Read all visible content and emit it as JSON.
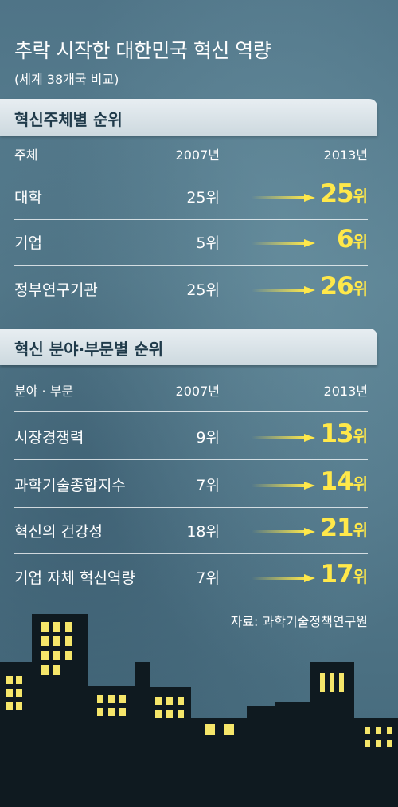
{
  "title": "추락 시작한 대한민국 혁신 역량",
  "subtitle": "(세계 38개국 비교)",
  "section1": {
    "heading": "혁신주체별 순위",
    "columns": [
      "주체",
      "2007년",
      "2013년"
    ],
    "rows": [
      {
        "name": "대학",
        "y2007": "25위",
        "y2013": "25",
        "unit": "위"
      },
      {
        "name": "기업",
        "y2007": "5위",
        "y2013": "6",
        "unit": "위"
      },
      {
        "name": "정부연구기관",
        "y2007": "25위",
        "y2013": "26",
        "unit": "위"
      }
    ]
  },
  "section2": {
    "heading": "혁신 분야·부문별 순위",
    "columns": [
      "분야 · 부문",
      "2007년",
      "2013년"
    ],
    "rows": [
      {
        "name": "시장경쟁력",
        "y2007": "9위",
        "y2013": "13",
        "unit": "위"
      },
      {
        "name": "과학기술종합지수",
        "y2007": "7위",
        "y2013": "14",
        "unit": "위"
      },
      {
        "name": "혁신의 건강성",
        "y2007": "18위",
        "y2013": "21",
        "unit": "위"
      },
      {
        "name": "기업 자체 혁신역량",
        "y2007": "7위",
        "y2013": "17",
        "unit": "위"
      }
    ]
  },
  "source": "자료: 과학기술정책연구원",
  "colors": {
    "background": "#547a8c",
    "highlight": "#ffe84a",
    "band": "#dbe4e9",
    "band_text": "#1f3a4a",
    "city": "#0f1a20",
    "window": "#f5e66a"
  },
  "icons": [
    "arrow-right-icon",
    "city-skyline"
  ]
}
